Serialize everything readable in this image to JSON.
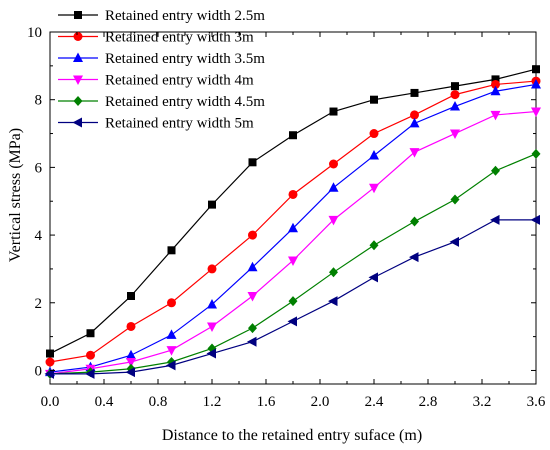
{
  "chart_data": {
    "type": "line",
    "title": "",
    "xlabel": "Distance to the retained entry suface (m)",
    "ylabel": "Vertical stress (MPa)",
    "xlim": [
      0.0,
      3.6
    ],
    "ylim": [
      -0.4,
      10
    ],
    "x_ticks": [
      "0.0",
      "0.4",
      "0.8",
      "1.2",
      "1.6",
      "2.0",
      "2.4",
      "2.8",
      "3.2",
      "3.6"
    ],
    "y_ticks": [
      "0",
      "2",
      "4",
      "6",
      "8",
      "10"
    ],
    "grid": false,
    "legend_position": "top-left",
    "series": [
      {
        "name": "Retained entry width 2.5m",
        "color": "#000000",
        "marker": "square",
        "x": [
          0.0,
          0.3,
          0.6,
          0.9,
          1.2,
          1.5,
          1.8,
          2.1,
          2.4,
          2.7,
          3.0,
          3.3,
          3.6
        ],
        "y": [
          0.5,
          1.1,
          2.2,
          3.55,
          4.9,
          6.15,
          6.95,
          7.65,
          8.0,
          8.2,
          8.4,
          8.6,
          8.9
        ]
      },
      {
        "name": "Retained entry width 3m",
        "color": "#ff0000",
        "marker": "circle",
        "x": [
          0.0,
          0.3,
          0.6,
          0.9,
          1.2,
          1.5,
          1.8,
          2.1,
          2.4,
          2.7,
          3.0,
          3.3,
          3.6
        ],
        "y": [
          0.25,
          0.45,
          1.3,
          2.0,
          3.0,
          4.0,
          5.2,
          6.1,
          7.0,
          7.55,
          8.15,
          8.45,
          8.55
        ]
      },
      {
        "name": "Retained entry width 3.5m",
        "color": "#0000ff",
        "marker": "triangle-up",
        "x": [
          0.0,
          0.3,
          0.6,
          0.9,
          1.2,
          1.5,
          1.8,
          2.1,
          2.4,
          2.7,
          3.0,
          3.3,
          3.6
        ],
        "y": [
          -0.05,
          0.1,
          0.45,
          1.05,
          1.95,
          3.05,
          4.2,
          5.4,
          6.35,
          7.3,
          7.8,
          8.25,
          8.45
        ]
      },
      {
        "name": "Retained entry width 4m",
        "color": "#ff00ff",
        "marker": "triangle-down",
        "x": [
          0.0,
          0.3,
          0.6,
          0.9,
          1.2,
          1.5,
          1.8,
          2.1,
          2.4,
          2.7,
          3.0,
          3.3,
          3.6
        ],
        "y": [
          -0.1,
          0.05,
          0.25,
          0.6,
          1.3,
          2.2,
          3.25,
          4.45,
          5.4,
          6.45,
          7.0,
          7.55,
          7.65
        ]
      },
      {
        "name": "Retained entry width 4.5m",
        "color": "#008000",
        "marker": "diamond",
        "x": [
          0.0,
          0.3,
          0.6,
          0.9,
          1.2,
          1.5,
          1.8,
          2.1,
          2.4,
          2.7,
          3.0,
          3.3,
          3.6
        ],
        "y": [
          -0.1,
          -0.05,
          0.05,
          0.25,
          0.65,
          1.25,
          2.05,
          2.9,
          3.7,
          4.4,
          5.05,
          5.9,
          6.4
        ]
      },
      {
        "name": "Retained entry width 5m",
        "color": "#000080",
        "marker": "triangle-left",
        "x": [
          0.0,
          0.3,
          0.6,
          0.9,
          1.2,
          1.5,
          1.8,
          2.1,
          2.4,
          2.7,
          3.0,
          3.3,
          3.6
        ],
        "y": [
          -0.1,
          -0.1,
          -0.05,
          0.15,
          0.5,
          0.85,
          1.45,
          2.05,
          2.75,
          3.35,
          3.8,
          4.45,
          4.45
        ]
      }
    ]
  }
}
